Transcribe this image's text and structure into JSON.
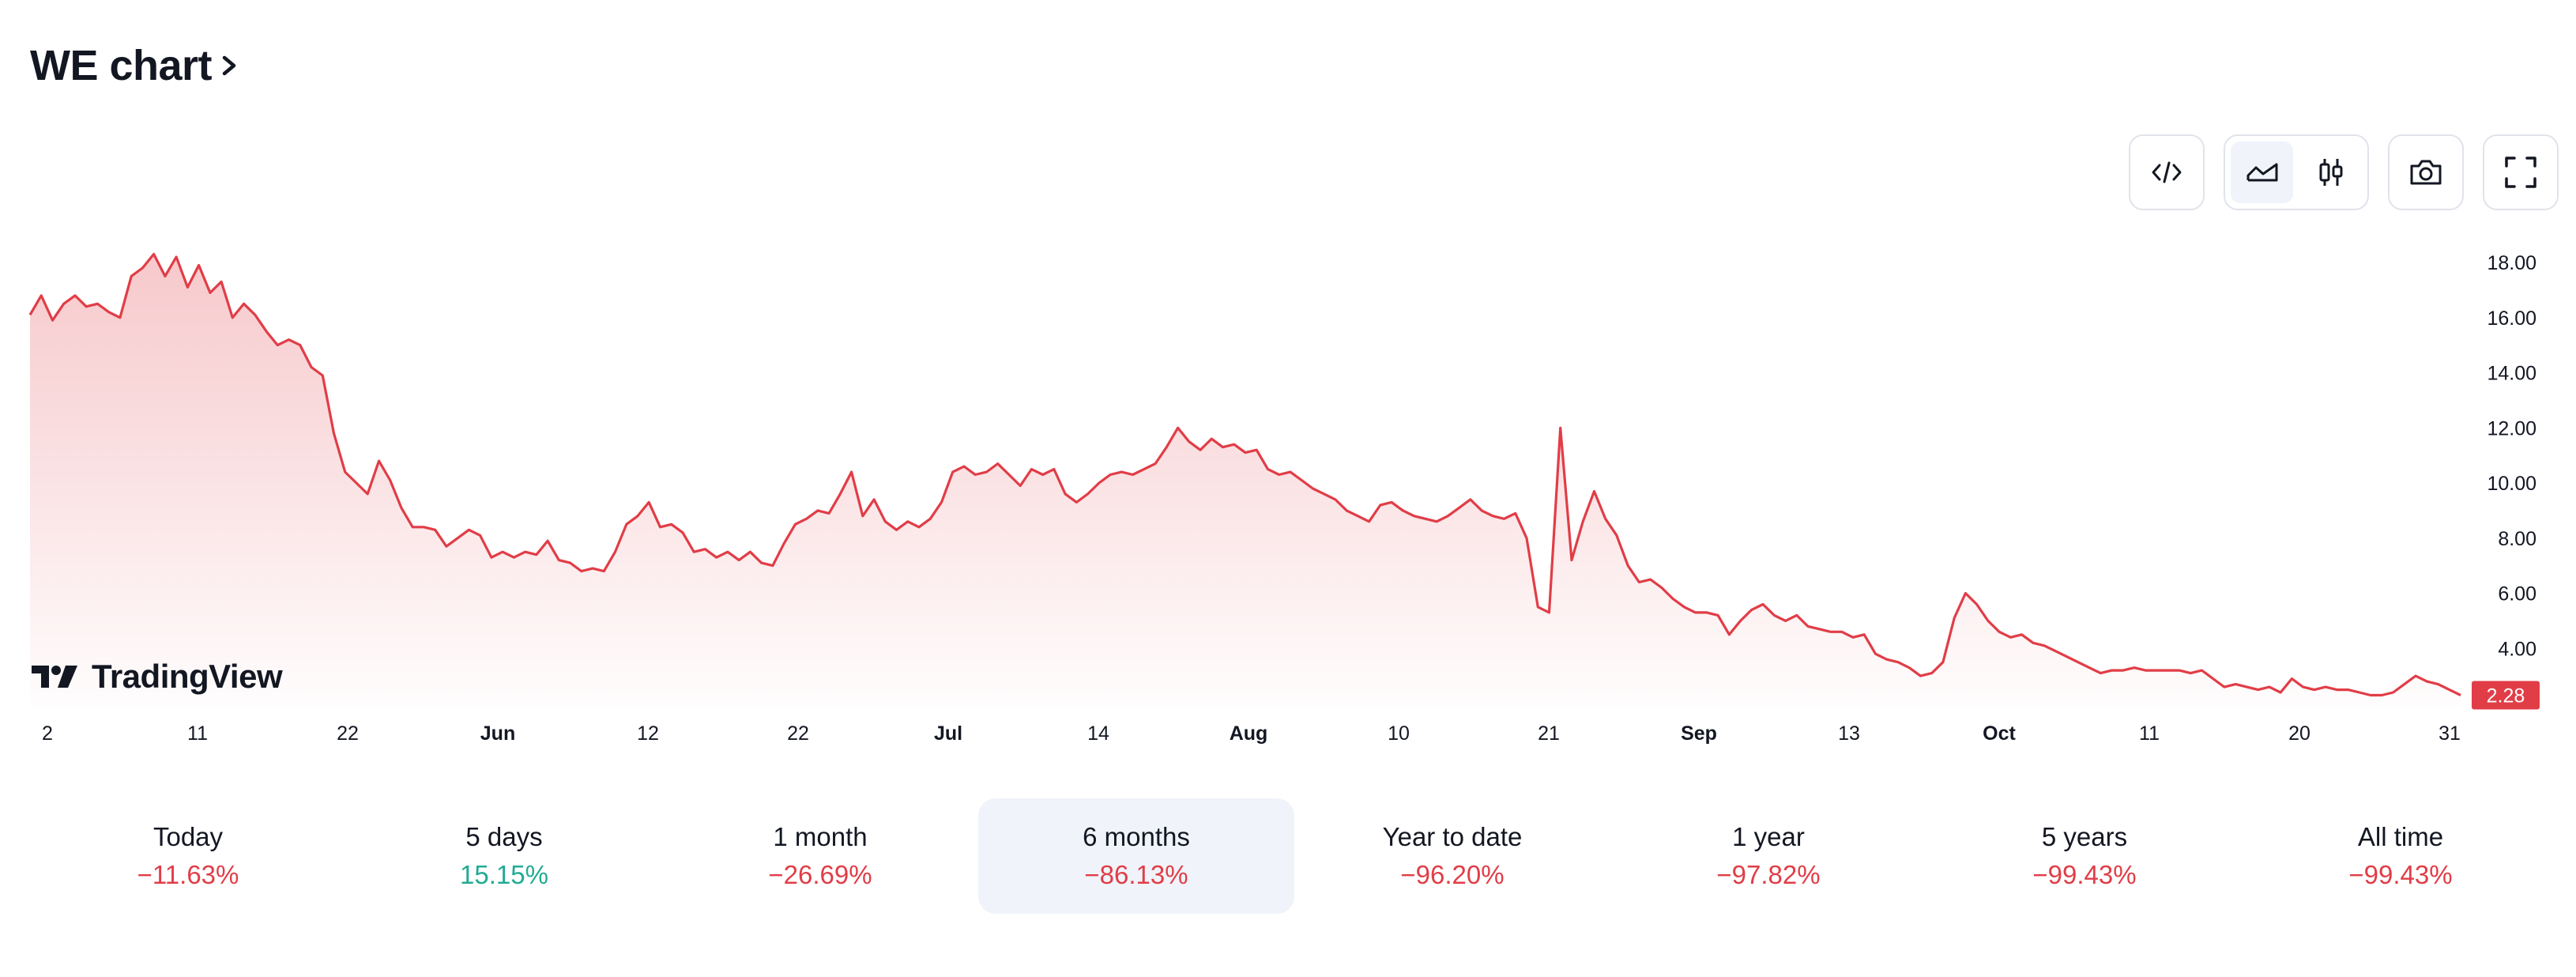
{
  "header": {
    "title": "WE chart"
  },
  "toolbar": {
    "buttons": [
      {
        "name": "embed-button",
        "icon": "code-icon"
      },
      {
        "name": "area-chart-button",
        "icon": "area-chart-icon",
        "active": true
      },
      {
        "name": "candle-chart-button",
        "icon": "candlestick-icon"
      },
      {
        "name": "snapshot-button",
        "icon": "camera-icon"
      },
      {
        "name": "fullscreen-button",
        "icon": "fullscreen-icon"
      }
    ]
  },
  "logo": {
    "text": "TradingView"
  },
  "colors": {
    "line": "#e13d47",
    "negative": "#e13d47",
    "positive": "#22ab94",
    "active_bg": "#f0f3fa"
  },
  "chart_data": {
    "type": "area",
    "y_ticks": [
      "18.00",
      "16.00",
      "14.00",
      "12.00",
      "10.00",
      "8.00",
      "6.00",
      "4.00"
    ],
    "ylim": [
      2.0,
      18.0
    ],
    "last_price": "2.28",
    "x_ticks": [
      {
        "label": "2",
        "bold": false
      },
      {
        "label": "11",
        "bold": false
      },
      {
        "label": "22",
        "bold": false
      },
      {
        "label": "Jun",
        "bold": true
      },
      {
        "label": "12",
        "bold": false
      },
      {
        "label": "22",
        "bold": false
      },
      {
        "label": "Jul",
        "bold": true
      },
      {
        "label": "14",
        "bold": false
      },
      {
        "label": "Aug",
        "bold": true
      },
      {
        "label": "10",
        "bold": false
      },
      {
        "label": "21",
        "bold": false
      },
      {
        "label": "Sep",
        "bold": true
      },
      {
        "label": "13",
        "bold": false
      },
      {
        "label": "Oct",
        "bold": true
      },
      {
        "label": "11",
        "bold": false
      },
      {
        "label": "20",
        "bold": false
      },
      {
        "label": "31",
        "bold": false
      }
    ],
    "series": [
      {
        "values": [
          16.1,
          16.8,
          15.9,
          16.5,
          16.8,
          16.4,
          16.5,
          16.2,
          16.0,
          17.5,
          17.8,
          18.3,
          17.5,
          18.2,
          17.1,
          17.9,
          16.9,
          17.3,
          16.0,
          16.5,
          16.1,
          15.5,
          15.0,
          15.2,
          15.0,
          14.2,
          13.9,
          11.8,
          10.4,
          10.0,
          9.6,
          10.8,
          10.1,
          9.1,
          8.4,
          8.4,
          8.3,
          7.7,
          8.0,
          8.3,
          8.1,
          7.3,
          7.5,
          7.3,
          7.5,
          7.4,
          7.9,
          7.2,
          7.1,
          6.8,
          6.9,
          6.8,
          7.5,
          8.5,
          8.8,
          9.3,
          8.4,
          8.5,
          8.2,
          7.5,
          7.6,
          7.3,
          7.5,
          7.2,
          7.5,
          7.1,
          7.0,
          7.8,
          8.5,
          8.7,
          9.0,
          8.9,
          9.6,
          10.4,
          8.8,
          9.4,
          8.6,
          8.3,
          8.6,
          8.4,
          8.7,
          9.3,
          10.4,
          10.6,
          10.3,
          10.4,
          10.7,
          10.3,
          9.9,
          10.5,
          10.3,
          10.5,
          9.6,
          9.3,
          9.6,
          10.0,
          10.3,
          10.4,
          10.3,
          10.5,
          10.7,
          11.3,
          12.0,
          11.5,
          11.2,
          11.6,
          11.3,
          11.4,
          11.1,
          11.2,
          10.5,
          10.3,
          10.4,
          10.1,
          9.8,
          9.6,
          9.4,
          9.0,
          8.8,
          8.6,
          9.2,
          9.3,
          9.0,
          8.8,
          8.7,
          8.6,
          8.8,
          9.1,
          9.4,
          9.0,
          8.8,
          8.7,
          8.9,
          8.0,
          5.5,
          5.3,
          12.0,
          7.2,
          8.6,
          9.7,
          8.7,
          8.1,
          7.0,
          6.4,
          6.5,
          6.2,
          5.8,
          5.5,
          5.3,
          5.3,
          5.2,
          4.5,
          5.0,
          5.4,
          5.6,
          5.2,
          5.0,
          5.2,
          4.8,
          4.7,
          4.6,
          4.6,
          4.4,
          4.5,
          3.8,
          3.6,
          3.5,
          3.3,
          3.0,
          3.1,
          3.5,
          5.1,
          6.0,
          5.6,
          5.0,
          4.6,
          4.4,
          4.5,
          4.2,
          4.1,
          3.9,
          3.7,
          3.5,
          3.3,
          3.1,
          3.2,
          3.2,
          3.3,
          3.2,
          3.2,
          3.2,
          3.2,
          3.1,
          3.2,
          2.9,
          2.6,
          2.7,
          2.6,
          2.5,
          2.6,
          2.4,
          2.9,
          2.6,
          2.5,
          2.6,
          2.5,
          2.5,
          2.4,
          2.3,
          2.3,
          2.4,
          2.7,
          3.0,
          2.8,
          2.7,
          2.5,
          2.3
        ]
      }
    ]
  },
  "periods": [
    {
      "label": "Today",
      "value": "−11.63%",
      "tone": "neg"
    },
    {
      "label": "5 days",
      "value": "15.15%",
      "tone": "pos"
    },
    {
      "label": "1 month",
      "value": "−26.69%",
      "tone": "neg"
    },
    {
      "label": "6 months",
      "value": "−86.13%",
      "tone": "neg",
      "active": true
    },
    {
      "label": "Year to date",
      "value": "−96.20%",
      "tone": "neg"
    },
    {
      "label": "1 year",
      "value": "−97.82%",
      "tone": "neg"
    },
    {
      "label": "5 years",
      "value": "−99.43%",
      "tone": "neg"
    },
    {
      "label": "All time",
      "value": "−99.43%",
      "tone": "neg"
    }
  ]
}
